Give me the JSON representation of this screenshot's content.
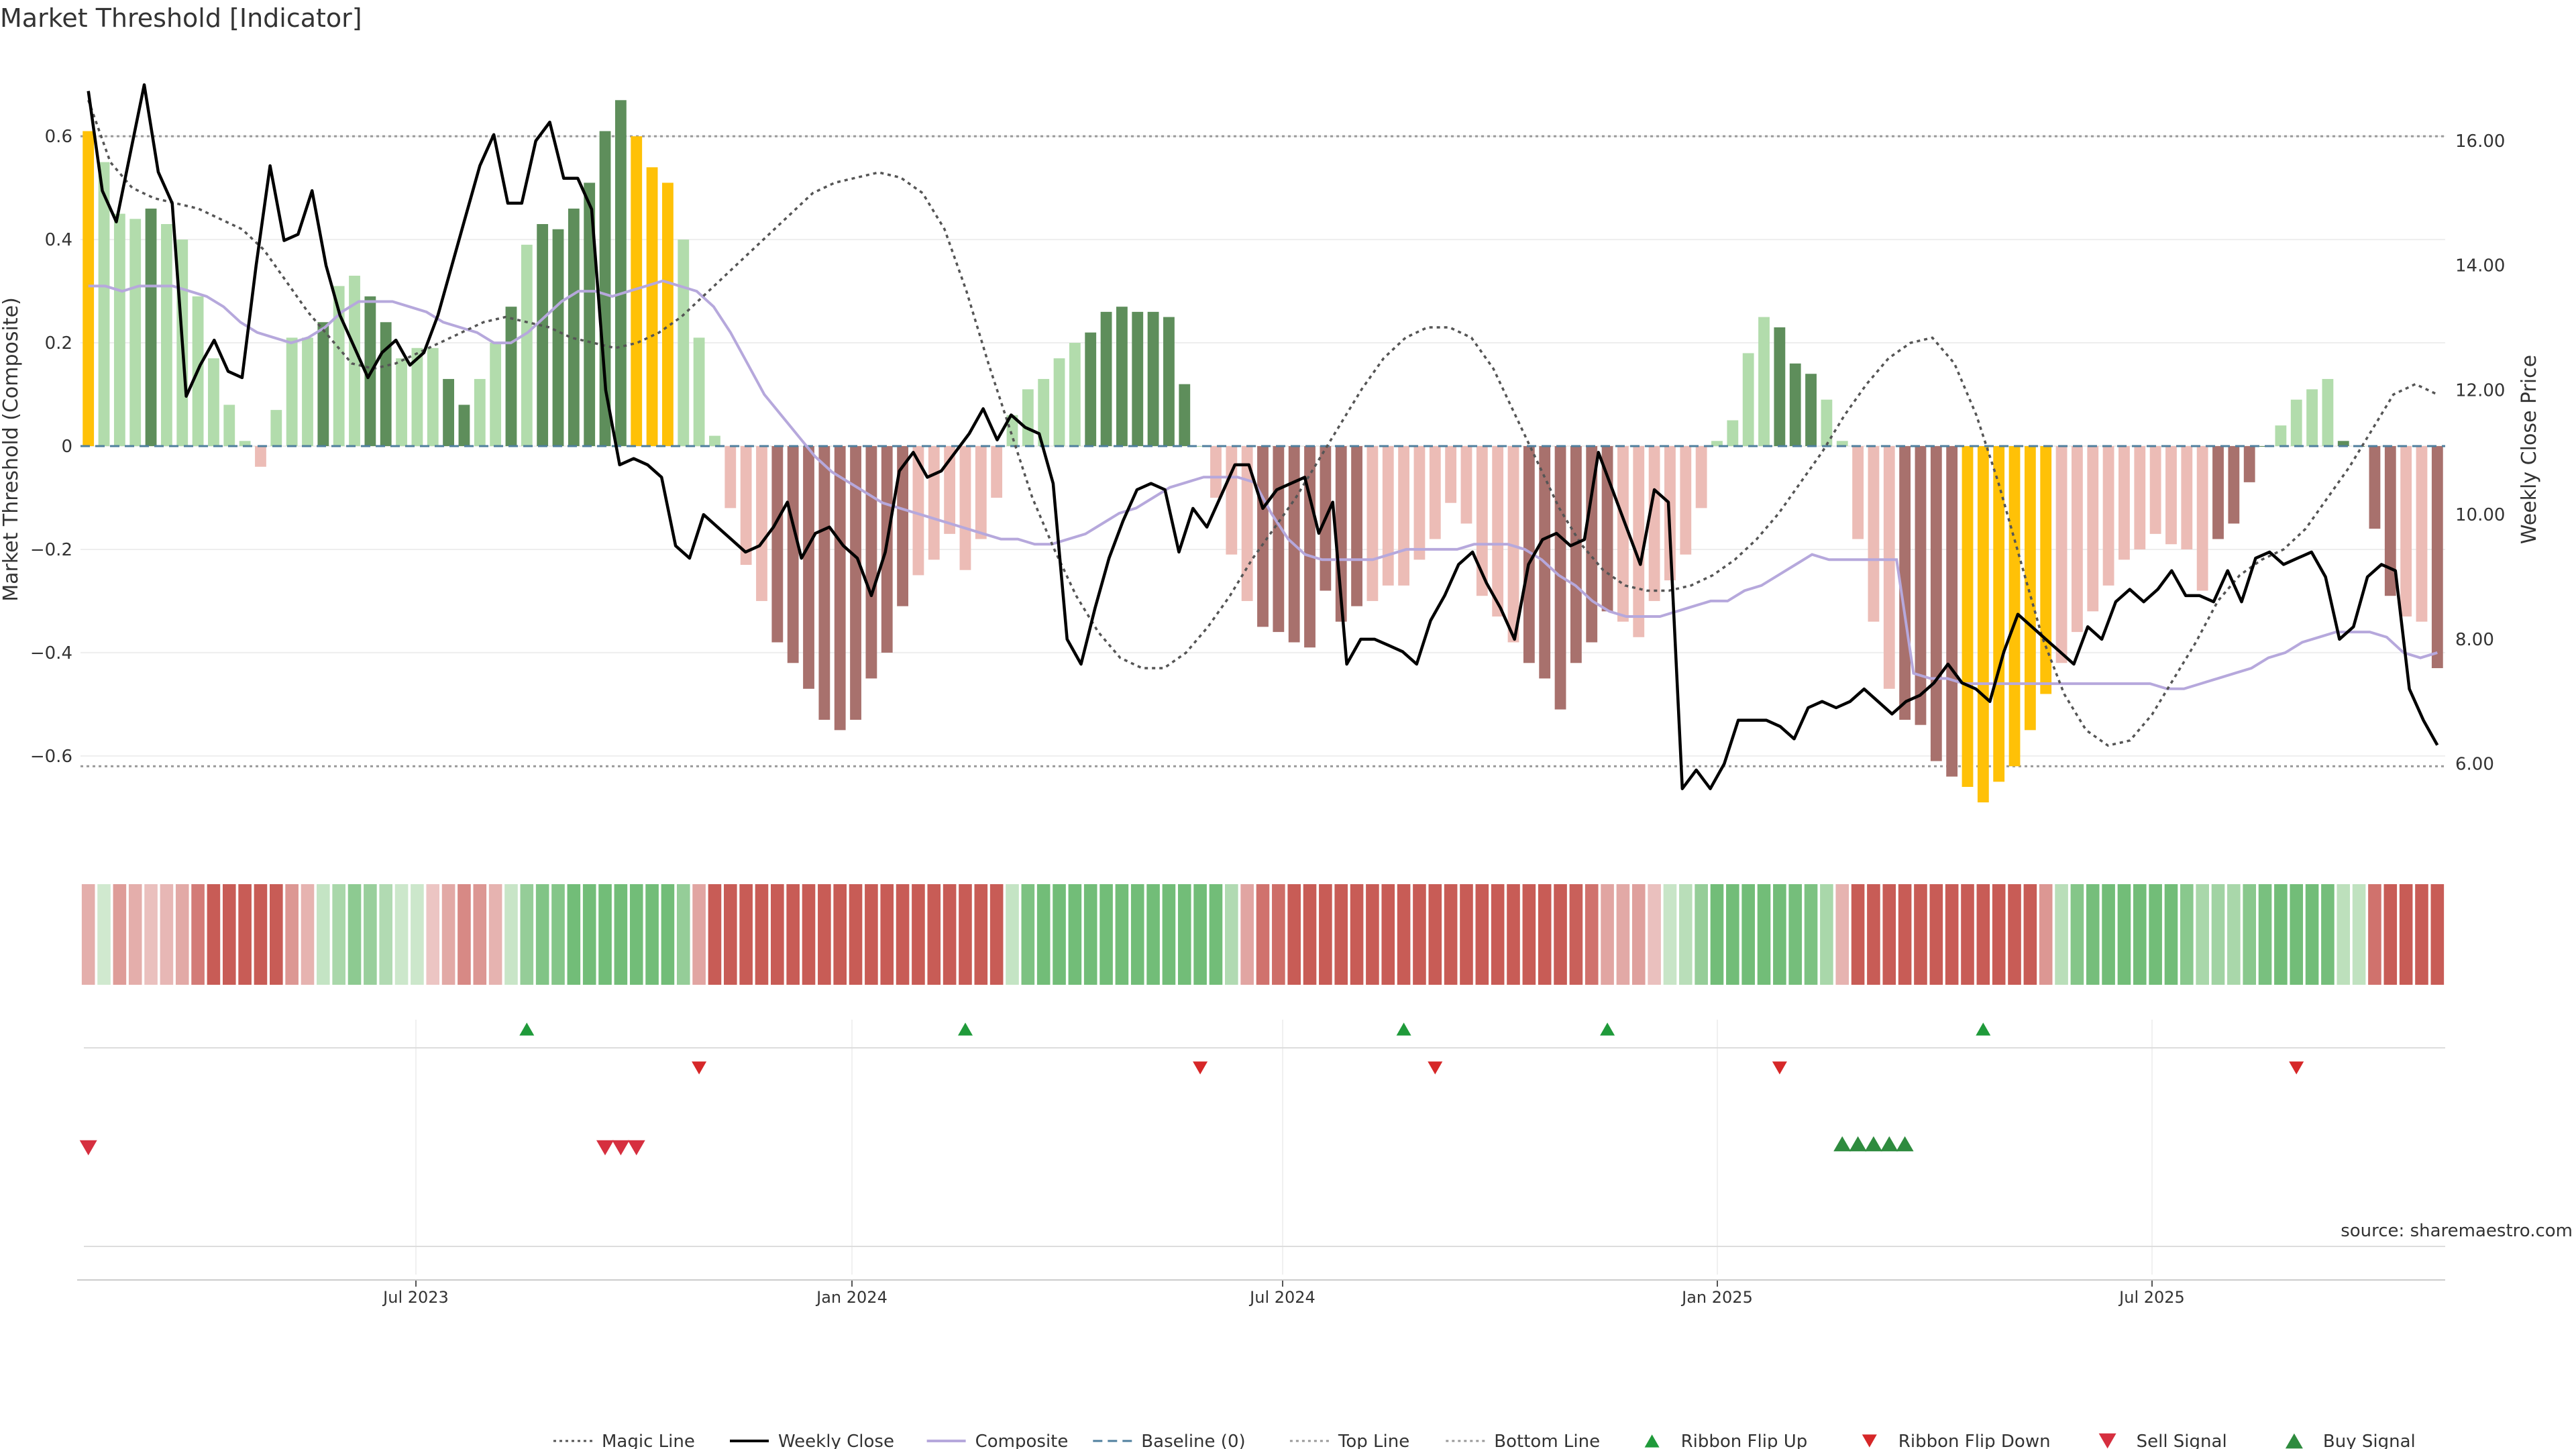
{
  "title": "Market Threshold [Indicator]",
  "source": "source: sharemaestro.com",
  "y_left_label": "Market Threshold (Composite)",
  "y_right_label": "Weekly Close Price",
  "y_left_ticks": [
    "0.6",
    "0.4",
    "0.2",
    "0",
    "−0.2",
    "−0.4",
    "−0.6"
  ],
  "y_right_ticks": [
    "16.00",
    "14.00",
    "12.00",
    "10.00",
    "8.00",
    "6.00"
  ],
  "x_ticks": [
    "Jul 2023",
    "Jan 2024",
    "Jul 2024",
    "Jan 2025",
    "Jul 2025"
  ],
  "legend": [
    {
      "label": "Magic Line",
      "kind": "dotted",
      "color": "#555555"
    },
    {
      "label": "Weekly Close",
      "kind": "solid",
      "color": "#000000"
    },
    {
      "label": "Composite",
      "kind": "solid",
      "color": "#b6a8dc"
    },
    {
      "label": "Baseline (0)",
      "kind": "dashed",
      "color": "#4f7f9e"
    },
    {
      "label": "Top Line",
      "kind": "dotted",
      "color": "#999999"
    },
    {
      "label": "Bottom Line",
      "kind": "dotted",
      "color": "#999999"
    },
    {
      "label": "Ribbon Flip Up",
      "kind": "tri-up",
      "color": "#1f9a3a"
    },
    {
      "label": "Ribbon Flip Down",
      "kind": "tri-down",
      "color": "#d62728"
    },
    {
      "label": "Sell Signal",
      "kind": "tri-down-lg",
      "color": "#d62f3f"
    },
    {
      "label": "Buy Signal",
      "kind": "tri-up-lg",
      "color": "#2e8b3e"
    }
  ],
  "colors": {
    "pos_strong": "#5e8e5b",
    "pos_light": "#b2dcac",
    "neg_strong": "#a8716d",
    "neg_light": "#ecbcb6",
    "extreme": "#ffc107",
    "magic": "#555555",
    "weekly": "#000000",
    "composite": "#b6a8dc",
    "baseline": "#4f7f9e",
    "threshold": "#999999"
  },
  "chart_data": {
    "type": "bar",
    "ylim_left": [
      -0.76,
      0.76
    ],
    "ylim_right": [
      4.8,
      17.4
    ],
    "top_line": 0.6,
    "bottom_line": -0.62,
    "bar_values": [
      0.61,
      0.55,
      0.45,
      0.44,
      0.46,
      0.43,
      0.4,
      0.29,
      0.17,
      0.08,
      0.01,
      -0.04,
      0.07,
      0.21,
      0.21,
      0.24,
      0.31,
      0.33,
      0.29,
      0.24,
      0.17,
      0.19,
      0.19,
      0.13,
      0.08,
      0.13,
      0.2,
      0.27,
      0.39,
      0.43,
      0.42,
      0.46,
      0.51,
      0.61,
      0.67,
      0.6,
      0.54,
      0.51,
      0.4,
      0.21,
      0.02,
      -0.12,
      -0.23,
      -0.3,
      -0.38,
      -0.42,
      -0.47,
      -0.53,
      -0.55,
      -0.53,
      -0.45,
      -0.4,
      -0.31,
      -0.25,
      -0.22,
      -0.17,
      -0.24,
      -0.18,
      -0.1,
      0.06,
      0.11,
      0.13,
      0.17,
      0.2,
      0.22,
      0.26,
      0.27,
      0.26,
      0.26,
      0.25,
      0.12,
      0.0,
      -0.1,
      -0.21,
      -0.3,
      -0.35,
      -0.36,
      -0.38,
      -0.39,
      -0.28,
      -0.34,
      -0.31,
      -0.3,
      -0.27,
      -0.27,
      -0.22,
      -0.18,
      -0.11,
      -0.15,
      -0.29,
      -0.33,
      -0.38,
      -0.42,
      -0.45,
      -0.51,
      -0.42,
      -0.38,
      -0.32,
      -0.34,
      -0.37,
      -0.3,
      -0.26,
      -0.21,
      -0.12,
      0.01,
      0.05,
      0.18,
      0.25,
      0.23,
      0.16,
      0.14,
      0.09,
      0.01,
      -0.18,
      -0.34,
      -0.47,
      -0.53,
      -0.54,
      -0.61,
      -0.64,
      -0.66,
      -0.69,
      -0.65,
      -0.62,
      -0.55,
      -0.48,
      -0.42,
      -0.36,
      -0.32,
      -0.27,
      -0.22,
      -0.2,
      -0.17,
      -0.19,
      -0.2,
      -0.28,
      -0.18,
      -0.15,
      -0.07,
      0.0,
      0.04,
      0.09,
      0.11,
      0.13,
      0.01,
      0.0,
      -0.16,
      -0.29,
      -0.33,
      -0.34,
      -0.43
    ],
    "bar_styles": "ypppspppppppnppsppsspppssppspssssssyyypppppnsssssssssnnnnnnnnnppssssssspppnsssssssnnnnnnnnnnssssssnnnnnnnnnpssspppnnssssyyyyyynnnnnnnnnnssssnnnpssssnnsnnsss",
    "weekly_close": [
      16.8,
      15.2,
      14.7,
      15.8,
      16.9,
      15.5,
      15.0,
      11.9,
      12.4,
      12.8,
      12.3,
      12.2,
      14.0,
      15.6,
      14.4,
      14.5,
      15.2,
      14.0,
      13.2,
      12.7,
      12.2,
      12.6,
      12.8,
      12.4,
      12.6,
      13.2,
      14.0,
      14.8,
      15.6,
      16.1,
      15.0,
      15.0,
      16.0,
      16.3,
      15.4,
      15.4,
      14.9,
      12.0,
      10.8,
      10.9,
      10.8,
      10.6,
      9.5,
      9.3,
      10.0,
      9.8,
      9.6,
      9.4,
      9.5,
      9.8,
      10.2,
      9.3,
      9.7,
      9.8,
      9.5,
      9.3,
      8.7,
      9.4,
      10.7,
      11.0,
      10.6,
      10.7,
      11.0,
      11.3,
      11.7,
      11.2,
      11.6,
      11.4,
      11.3,
      10.5,
      8.0,
      7.6,
      8.5,
      9.3,
      9.9,
      10.4,
      10.5,
      10.4,
      9.4,
      10.1,
      9.8,
      10.3,
      10.8,
      10.8,
      10.1,
      10.4,
      10.5,
      10.6,
      9.7,
      10.2,
      7.6,
      8.0,
      8.0,
      7.9,
      7.8,
      7.6,
      8.3,
      8.7,
      9.2,
      9.4,
      8.9,
      8.5,
      8.0,
      9.2,
      9.6,
      9.7,
      9.5,
      9.6,
      11.0,
      10.4,
      9.8,
      9.2,
      10.4,
      10.2,
      5.6,
      5.9,
      5.6,
      6.0,
      6.7,
      6.7,
      6.7,
      6.6,
      6.4,
      6.9,
      7.0,
      6.9,
      7.0,
      7.2,
      7.0,
      6.8,
      7.0,
      7.1,
      7.3,
      7.6,
      7.3,
      7.2,
      7.0,
      7.8,
      8.4,
      8.2,
      8.0,
      7.8,
      7.6,
      8.2,
      8.0,
      8.6,
      8.8,
      8.6,
      8.8,
      9.1,
      8.7,
      8.7,
      8.6,
      9.1,
      8.6,
      9.3,
      9.4,
      9.2,
      9.3,
      9.4,
      9.0,
      8.0,
      8.2,
      9.0,
      9.2,
      9.1,
      7.2,
      6.7,
      6.3
    ],
    "composite": [
      0.31,
      0.31,
      0.3,
      0.31,
      0.31,
      0.31,
      0.3,
      0.29,
      0.27,
      0.24,
      0.22,
      0.21,
      0.2,
      0.21,
      0.23,
      0.26,
      0.28,
      0.28,
      0.28,
      0.27,
      0.26,
      0.24,
      0.23,
      0.22,
      0.2,
      0.2,
      0.22,
      0.25,
      0.28,
      0.3,
      0.3,
      0.29,
      0.3,
      0.31,
      0.32,
      0.31,
      0.3,
      0.27,
      0.22,
      0.16,
      0.1,
      0.06,
      0.02,
      -0.02,
      -0.05,
      -0.07,
      -0.09,
      -0.11,
      -0.12,
      -0.13,
      -0.14,
      -0.15,
      -0.16,
      -0.17,
      -0.18,
      -0.18,
      -0.19,
      -0.19,
      -0.18,
      -0.17,
      -0.15,
      -0.13,
      -0.12,
      -0.1,
      -0.08,
      -0.07,
      -0.06,
      -0.06,
      -0.06,
      -0.07,
      -0.13,
      -0.18,
      -0.21,
      -0.22,
      -0.22,
      -0.22,
      -0.22,
      -0.21,
      -0.2,
      -0.2,
      -0.2,
      -0.2,
      -0.19,
      -0.19,
      -0.19,
      -0.2,
      -0.22,
      -0.25,
      -0.27,
      -0.3,
      -0.32,
      -0.33,
      -0.33,
      -0.33,
      -0.32,
      -0.31,
      -0.3,
      -0.3,
      -0.28,
      -0.27,
      -0.25,
      -0.23,
      -0.21,
      -0.22,
      -0.22,
      -0.22,
      -0.22,
      -0.22,
      -0.44,
      -0.45,
      -0.45,
      -0.46,
      -0.46,
      -0.46,
      -0.46,
      -0.46,
      -0.46,
      -0.46,
      -0.46,
      -0.46,
      -0.46,
      -0.46,
      -0.46,
      -0.47,
      -0.47,
      -0.46,
      -0.45,
      -0.44,
      -0.43,
      -0.41,
      -0.4,
      -0.38,
      -0.37,
      -0.36,
      -0.36,
      -0.36,
      -0.37,
      -0.4,
      -0.41,
      -0.4
    ],
    "magic_line": [
      0.67,
      0.55,
      0.5,
      0.48,
      0.47,
      0.46,
      0.44,
      0.42,
      0.38,
      0.32,
      0.26,
      0.21,
      0.16,
      0.15,
      0.16,
      0.18,
      0.2,
      0.22,
      0.24,
      0.25,
      0.24,
      0.23,
      0.21,
      0.2,
      0.19,
      0.2,
      0.22,
      0.25,
      0.29,
      0.33,
      0.37,
      0.41,
      0.45,
      0.49,
      0.51,
      0.52,
      0.53,
      0.52,
      0.49,
      0.42,
      0.3,
      0.16,
      0.03,
      -0.1,
      -0.2,
      -0.29,
      -0.36,
      -0.41,
      -0.43,
      -0.43,
      -0.4,
      -0.35,
      -0.29,
      -0.22,
      -0.16,
      -0.1,
      -0.03,
      0.04,
      0.11,
      0.17,
      0.21,
      0.23,
      0.23,
      0.21,
      0.15,
      0.06,
      -0.03,
      -0.12,
      -0.19,
      -0.24,
      -0.27,
      -0.28,
      -0.28,
      -0.27,
      -0.25,
      -0.22,
      -0.18,
      -0.13,
      -0.07,
      -0.01,
      0.06,
      0.12,
      0.17,
      0.2,
      0.21,
      0.16,
      0.06,
      -0.07,
      -0.22,
      -0.37,
      -0.48,
      -0.55,
      -0.58,
      -0.57,
      -0.52,
      -0.45,
      -0.38,
      -0.3,
      -0.25,
      -0.22,
      -0.2,
      -0.16,
      -0.1,
      -0.04,
      0.03,
      0.1,
      0.12,
      0.1
    ],
    "top_markers": [
      28,
      56,
      84,
      97,
      121
    ],
    "ribbon_down_markers": [
      39,
      71,
      86,
      108,
      141
    ],
    "sell_signals": [
      0,
      33,
      34,
      35
    ],
    "buy_signals": [
      112,
      113,
      114,
      115,
      116
    ]
  }
}
